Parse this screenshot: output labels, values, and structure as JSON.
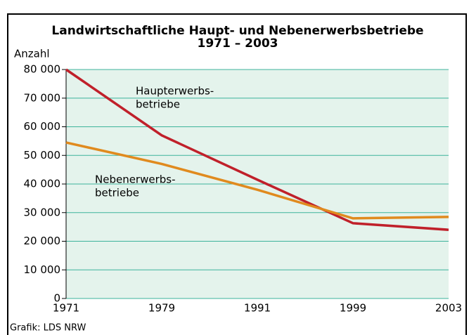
{
  "chart_data": {
    "type": "line",
    "title": "Landwirtschaftliche Haupt- und Nebenerwerbsbetriebe",
    "subtitle": "1971 – 2003",
    "ylabel": "Anzahl",
    "source": "Grafik: LDS NRW",
    "categories": [
      "1971",
      "1979",
      "1991",
      "1999",
      "2003"
    ],
    "series": [
      {
        "label": [
          "Haupterwerbs-",
          "betriebe"
        ],
        "color": "#c0202a",
        "values": [
          80000,
          57000,
          41500,
          26300,
          24000
        ]
      },
      {
        "label": [
          "Nebenerwerbs-",
          "betriebe"
        ],
        "color": "#e08a1e",
        "values": [
          54500,
          47000,
          38000,
          28000,
          28500
        ]
      }
    ],
    "ylim": [
      0,
      80000
    ],
    "yticks": [
      0,
      {
        "value": 10000,
        "label": "10 000"
      },
      {
        "value": 20000,
        "label": "20 000"
      },
      {
        "value": 30000,
        "label": "30 000"
      },
      {
        "value": 40000,
        "label": "40 000"
      },
      {
        "value": 50000,
        "label": "50 000"
      },
      {
        "value": 60000,
        "label": "60 000"
      },
      {
        "value": 70000,
        "label": "70 000"
      },
      {
        "value": 80000,
        "label": "80 000"
      }
    ],
    "grid": true,
    "plot_background": "#e4f3ec",
    "grid_color": "#3db39b"
  }
}
